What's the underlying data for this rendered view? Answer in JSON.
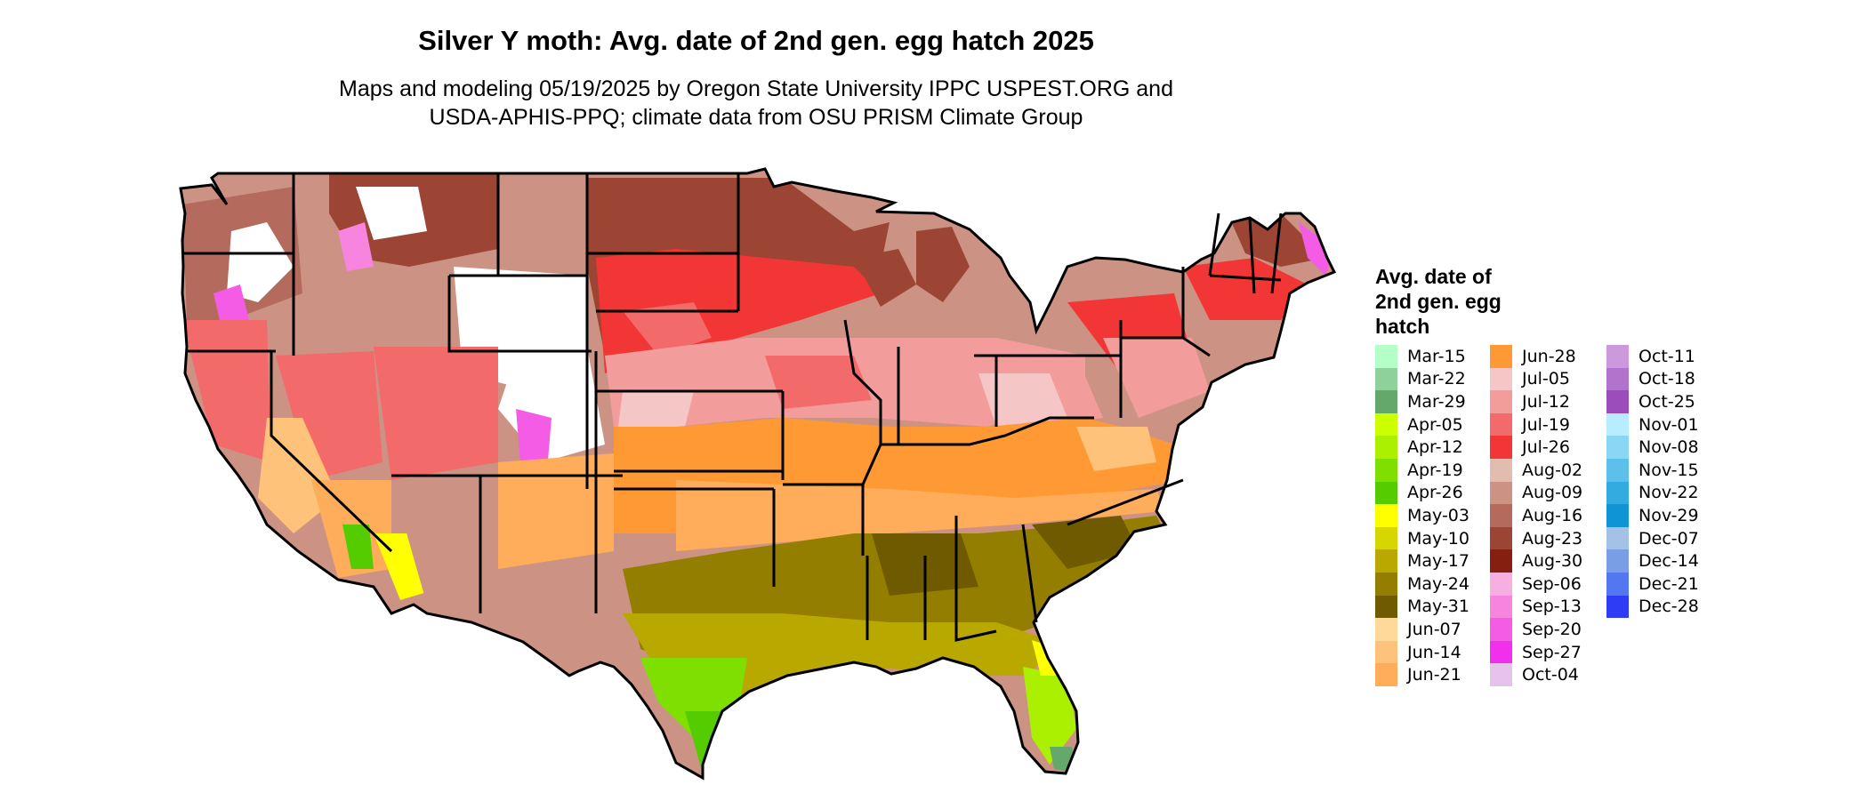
{
  "title": "Silver Y moth: Avg. date of 2nd gen. egg hatch 2025",
  "subtitle_line1": "Maps and modeling 05/19/2025 by Oregon State University IPPC USPEST.ORG and",
  "subtitle_line2": "USDA-APHIS-PPQ; climate data from OSU PRISM Climate Group",
  "legend": {
    "title_lines": [
      "Avg. date of",
      "2nd gen. egg",
      "hatch"
    ],
    "items": [
      {
        "label": "Mar-15",
        "color": "#b3ffc7"
      },
      {
        "label": "Mar-22",
        "color": "#8fd19a"
      },
      {
        "label": "Mar-29",
        "color": "#65a86c"
      },
      {
        "label": "Apr-05",
        "color": "#ccff00"
      },
      {
        "label": "Apr-12",
        "color": "#aaf000"
      },
      {
        "label": "Apr-19",
        "color": "#7fe000"
      },
      {
        "label": "Apr-26",
        "color": "#55cc00"
      },
      {
        "label": "May-03",
        "color": "#ffff00"
      },
      {
        "label": "May-10",
        "color": "#d6d600"
      },
      {
        "label": "May-17",
        "color": "#b8a800"
      },
      {
        "label": "May-24",
        "color": "#947e00"
      },
      {
        "label": "May-31",
        "color": "#6f5a00"
      },
      {
        "label": "Jun-07",
        "color": "#ffd99a"
      },
      {
        "label": "Jun-14",
        "color": "#ffc27a"
      },
      {
        "label": "Jun-21",
        "color": "#ffad5a"
      },
      {
        "label": "Jun-28",
        "color": "#ff9933"
      },
      {
        "label": "Jul-05",
        "color": "#f4c6c6"
      },
      {
        "label": "Jul-12",
        "color": "#f29c9c"
      },
      {
        "label": "Jul-19",
        "color": "#f26a6a"
      },
      {
        "label": "Jul-26",
        "color": "#f23535"
      },
      {
        "label": "Aug-02",
        "color": "#e3bcb0"
      },
      {
        "label": "Aug-09",
        "color": "#cc9385"
      },
      {
        "label": "Aug-16",
        "color": "#b46a5c"
      },
      {
        "label": "Aug-23",
        "color": "#9c4535"
      },
      {
        "label": "Aug-30",
        "color": "#851f10"
      },
      {
        "label": "Sep-06",
        "color": "#f7aee0"
      },
      {
        "label": "Sep-13",
        "color": "#f785e0"
      },
      {
        "label": "Sep-20",
        "color": "#f55ce6"
      },
      {
        "label": "Sep-27",
        "color": "#f230ec"
      },
      {
        "label": "Oct-04",
        "color": "#e6c3ea"
      },
      {
        "label": "Oct-11",
        "color": "#cc99dd"
      },
      {
        "label": "Oct-18",
        "color": "#b273cc"
      },
      {
        "label": "Oct-25",
        "color": "#9b4dbb"
      },
      {
        "label": "Nov-01",
        "color": "#b8ecff"
      },
      {
        "label": "Nov-08",
        "color": "#8ad6f5"
      },
      {
        "label": "Nov-15",
        "color": "#5cc0ea"
      },
      {
        "label": "Nov-22",
        "color": "#33aae0"
      },
      {
        "label": "Nov-29",
        "color": "#0f94d6"
      },
      {
        "label": "Dec-07",
        "color": "#a3c2e6"
      },
      {
        "label": "Dec-14",
        "color": "#7a9ee6"
      },
      {
        "label": "Dec-21",
        "color": "#5277f0"
      },
      {
        "label": "Dec-28",
        "color": "#2e3df5"
      }
    ]
  }
}
